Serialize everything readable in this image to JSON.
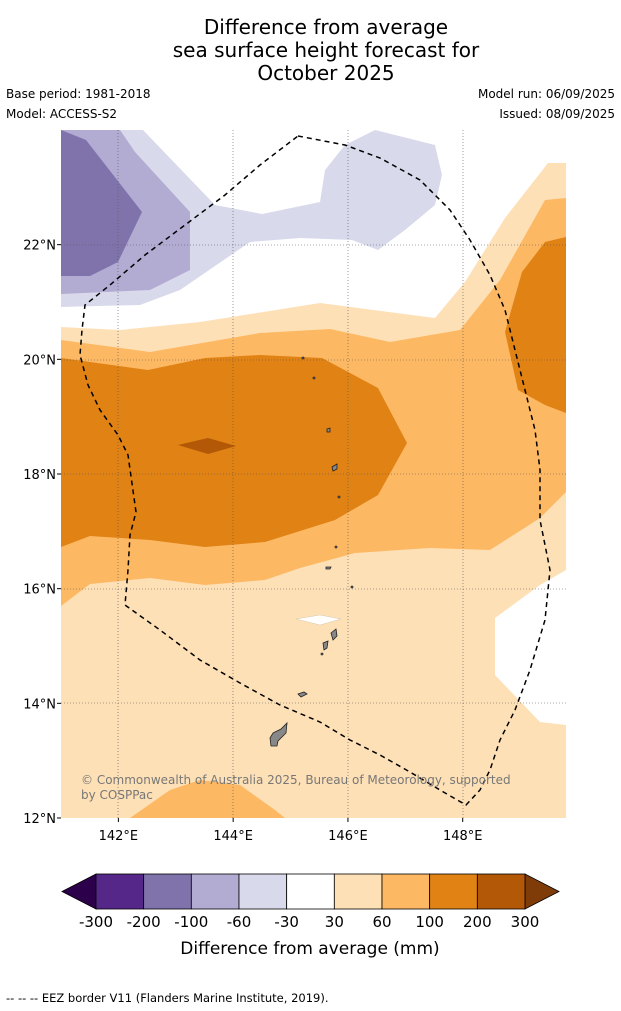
{
  "header": {
    "title_line1": "Difference from average",
    "title_line2": "sea surface height forecast for",
    "title_line3": "October 2025",
    "base_period": "Base period: 1981-2018",
    "model": "Model: ACCESS-S2",
    "model_run": "Model run: 06/09/2025",
    "issued": "Issued: 08/09/2025"
  },
  "chart_data": {
    "type": "heatmap",
    "title": "Difference from average sea surface height forecast for October 2025",
    "x_ticks": [
      "142°E",
      "144°E",
      "146°E",
      "148°E"
    ],
    "y_ticks": [
      "12°N",
      "14°N",
      "16°N",
      "18°N",
      "20°N",
      "22°N"
    ],
    "xlim": [
      141,
      149.8
    ],
    "ylim": [
      12,
      24
    ],
    "grid": true,
    "colorbar": {
      "label": "Difference from average (mm)",
      "bounds": [
        "-300",
        "-200",
        "-100",
        "-60",
        "-30",
        "30",
        "60",
        "100",
        "200",
        "300"
      ],
      "colors": [
        "#2d004b",
        "#542788",
        "#8073ac",
        "#b2abd2",
        "#d8daeb",
        "#ffffff",
        "#fee0b6",
        "#fdb863",
        "#e08214",
        "#b35806",
        "#7f3b08"
      ]
    },
    "annotation": "© Commonwealth of Australia 2025, Bureau of Meteorology, supported by COSPPac",
    "annotation_line1": "© Commonwealth of Australia 2025, Bureau of Meteorology, supported",
    "annotation_line2": "by COSPPac"
  },
  "footer": {
    "legend_note": "-- -- -- EEZ border V11 (Flanders Marine Institute, 2019)."
  }
}
